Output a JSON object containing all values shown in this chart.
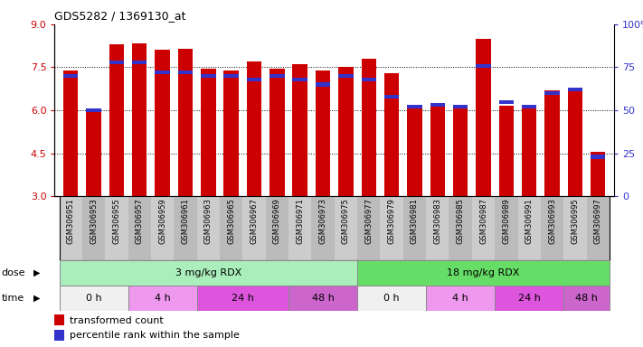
{
  "title": "GDS5282 / 1369130_at",
  "samples": [
    "GSM306951",
    "GSM306953",
    "GSM306955",
    "GSM306957",
    "GSM306959",
    "GSM306961",
    "GSM306963",
    "GSM306965",
    "GSM306967",
    "GSM306969",
    "GSM306971",
    "GSM306973",
    "GSM306975",
    "GSM306977",
    "GSM306979",
    "GSM306981",
    "GSM306983",
    "GSM306985",
    "GSM306987",
    "GSM306989",
    "GSM306991",
    "GSM306993",
    "GSM306995",
    "GSM306997"
  ],
  "transformed_count": [
    7.4,
    6.0,
    8.3,
    8.35,
    8.1,
    8.15,
    7.45,
    7.4,
    7.7,
    7.45,
    7.6,
    7.4,
    7.5,
    7.8,
    7.3,
    6.1,
    6.15,
    6.15,
    8.5,
    6.15,
    6.15,
    6.7,
    6.7,
    4.55
  ],
  "percentile_rank": [
    70,
    50,
    78,
    78,
    72,
    72,
    70,
    70,
    68,
    70,
    68,
    65,
    70,
    68,
    58,
    52,
    53,
    52,
    76,
    55,
    52,
    60,
    62,
    23
  ],
  "ylim": [
    3,
    9
  ],
  "yticks": [
    3,
    4.5,
    6,
    7.5,
    9
  ],
  "right_yticks": [
    0,
    25,
    50,
    75,
    100
  ],
  "bar_color": "#cc0000",
  "blue_color": "#3333cc",
  "dose_groups": [
    {
      "label": "3 mg/kg RDX",
      "start": 0,
      "end": 12,
      "color": "#aaeebb"
    },
    {
      "label": "18 mg/kg RDX",
      "start": 13,
      "end": 23,
      "color": "#66dd66"
    }
  ],
  "time_groups": [
    {
      "label": "0 h",
      "start": 0,
      "end": 2,
      "color": "#f0f0f0"
    },
    {
      "label": "4 h",
      "start": 3,
      "end": 5,
      "color": "#ee99ee"
    },
    {
      "label": "24 h",
      "start": 6,
      "end": 9,
      "color": "#dd55dd"
    },
    {
      "label": "48 h",
      "start": 10,
      "end": 12,
      "color": "#cc66cc"
    },
    {
      "label": "0 h",
      "start": 13,
      "end": 15,
      "color": "#f0f0f0"
    },
    {
      "label": "4 h",
      "start": 16,
      "end": 18,
      "color": "#ee99ee"
    },
    {
      "label": "24 h",
      "start": 19,
      "end": 21,
      "color": "#dd55dd"
    },
    {
      "label": "48 h",
      "start": 22,
      "end": 23,
      "color": "#cc66cc"
    }
  ],
  "legend_items": [
    {
      "label": "transformed count",
      "color": "#cc0000"
    },
    {
      "label": "percentile rank within the sample",
      "color": "#3333cc"
    }
  ],
  "bg_color": "#ffffff",
  "tick_label_color_left": "#cc0000",
  "tick_label_color_right": "#3333cc",
  "xtick_bg_even": "#cccccc",
  "xtick_bg_odd": "#bbbbbb"
}
